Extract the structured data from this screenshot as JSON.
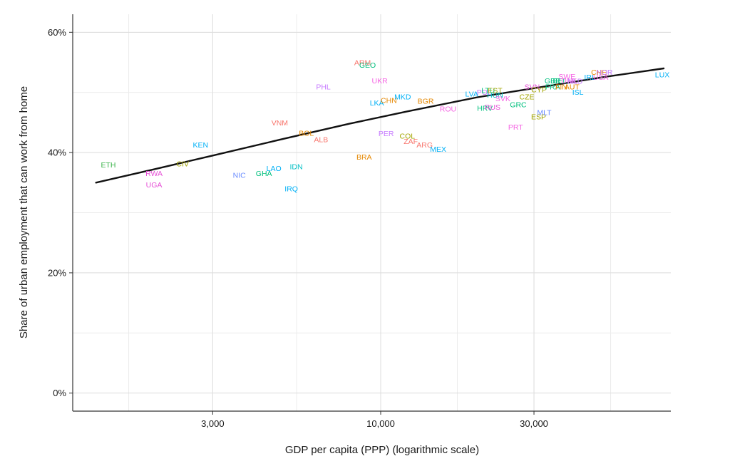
{
  "chart_data": {
    "type": "scatter",
    "title": "",
    "xlabel": "GDP per capita (PPP) (logarithmic scale)",
    "ylabel": "Share of urban employment that can work from home",
    "x_scale": "log",
    "xlim": [
      1100,
      80000
    ],
    "ylim": [
      -3,
      63
    ],
    "x_ticks": [
      {
        "value": 3000,
        "label": "3,000"
      },
      {
        "value": 10000,
        "label": "10,000"
      },
      {
        "value": 30000,
        "label": "30,000"
      }
    ],
    "y_ticks": [
      {
        "value": 0,
        "label": "0%"
      },
      {
        "value": 20,
        "label": "20%"
      },
      {
        "value": 40,
        "label": "40%"
      },
      {
        "value": 60,
        "label": "60%"
      }
    ],
    "grid": true,
    "legend": "none",
    "trend_line": {
      "x": [
        1300,
        2000,
        3000,
        5000,
        8000,
        12000,
        20000,
        30000,
        50000,
        76000
      ],
      "y": [
        35.0,
        37.3,
        39.5,
        42.3,
        44.8,
        46.8,
        49.2,
        50.7,
        52.6,
        54.0
      ],
      "color": "#111111"
    },
    "points": [
      {
        "label": "ETH",
        "x": 1420,
        "y": 38.0,
        "color": "#3cb44b"
      },
      {
        "label": "RWA",
        "x": 1970,
        "y": 36.6,
        "color": "#e64fd6"
      },
      {
        "label": "UGA",
        "x": 1970,
        "y": 34.7,
        "color": "#e64fd6"
      },
      {
        "label": "CIV",
        "x": 2420,
        "y": 38.2,
        "color": "#a3a500"
      },
      {
        "label": "KEN",
        "x": 2750,
        "y": 41.3,
        "color": "#00b0f6"
      },
      {
        "label": "NIC",
        "x": 3630,
        "y": 36.3,
        "color": "#6a8cff"
      },
      {
        "label": "GHA",
        "x": 4330,
        "y": 36.6,
        "color": "#00bf7d"
      },
      {
        "label": "LAO",
        "x": 4650,
        "y": 37.4,
        "color": "#00b0f6"
      },
      {
        "label": "IRQ",
        "x": 5270,
        "y": 34.0,
        "color": "#00b0f6"
      },
      {
        "label": "IDN",
        "x": 5460,
        "y": 37.7,
        "color": "#00bfc4"
      },
      {
        "label": "VNM",
        "x": 4850,
        "y": 45.0,
        "color": "#f8766d"
      },
      {
        "label": "BOL",
        "x": 5870,
        "y": 43.3,
        "color": "#e58700"
      },
      {
        "label": "ALB",
        "x": 6520,
        "y": 42.2,
        "color": "#f8766d"
      },
      {
        "label": "PHL",
        "x": 6630,
        "y": 51.0,
        "color": "#c77cff"
      },
      {
        "label": "ARM",
        "x": 8780,
        "y": 55.0,
        "color": "#f8766d"
      },
      {
        "label": "GEO",
        "x": 9100,
        "y": 54.6,
        "color": "#00bf7d"
      },
      {
        "label": "UKR",
        "x": 9930,
        "y": 52.0,
        "color": "#f564e3"
      },
      {
        "label": "BRA",
        "x": 8880,
        "y": 39.3,
        "color": "#e58700"
      },
      {
        "label": "LKA",
        "x": 9730,
        "y": 48.3,
        "color": "#00b0f6"
      },
      {
        "label": "CHN",
        "x": 10600,
        "y": 48.7,
        "color": "#e58700"
      },
      {
        "label": "PER",
        "x": 10400,
        "y": 43.2,
        "color": "#c77cff"
      },
      {
        "label": "MKD",
        "x": 11700,
        "y": 49.3,
        "color": "#00b0f6"
      },
      {
        "label": "COL",
        "x": 12100,
        "y": 42.8,
        "color": "#a3a500"
      },
      {
        "label": "ZAF",
        "x": 12400,
        "y": 41.9,
        "color": "#f8766d"
      },
      {
        "label": "BGR",
        "x": 13800,
        "y": 48.6,
        "color": "#e58700"
      },
      {
        "label": "ARG",
        "x": 13700,
        "y": 41.3,
        "color": "#f8766d"
      },
      {
        "label": "MEX",
        "x": 15100,
        "y": 40.6,
        "color": "#00b0f6"
      },
      {
        "label": "ROU",
        "x": 16200,
        "y": 47.3,
        "color": "#f564e3"
      },
      {
        "label": "LVA",
        "x": 19200,
        "y": 49.8,
        "color": "#00b0f6"
      },
      {
        "label": "POL",
        "x": 21000,
        "y": 50.1,
        "color": "#c77cff"
      },
      {
        "label": "LTU",
        "x": 21600,
        "y": 50.4,
        "color": "#00bf7d"
      },
      {
        "label": "EST",
        "x": 22700,
        "y": 50.4,
        "color": "#a3a500"
      },
      {
        "label": "HUN",
        "x": 22700,
        "y": 49.6,
        "color": "#00bfc4"
      },
      {
        "label": "HRV",
        "x": 21100,
        "y": 47.4,
        "color": "#00bf7d"
      },
      {
        "label": "RUS",
        "x": 22300,
        "y": 47.6,
        "color": "#e64fd6"
      },
      {
        "label": "SVK",
        "x": 24000,
        "y": 49.0,
        "color": "#f564e3"
      },
      {
        "label": "GRC",
        "x": 26800,
        "y": 48.0,
        "color": "#00bf7d"
      },
      {
        "label": "PRT",
        "x": 26300,
        "y": 44.3,
        "color": "#f564e3"
      },
      {
        "label": "CZE",
        "x": 28500,
        "y": 49.3,
        "color": "#a3a500"
      },
      {
        "label": "SVN",
        "x": 29600,
        "y": 51.0,
        "color": "#e64fd6"
      },
      {
        "label": "CYP",
        "x": 31100,
        "y": 50.5,
        "color": "#a3a500"
      },
      {
        "label": "ESP",
        "x": 31000,
        "y": 46.0,
        "color": "#a3a500"
      },
      {
        "label": "MLT",
        "x": 32300,
        "y": 46.7,
        "color": "#6a8cff"
      },
      {
        "label": "GBR",
        "x": 34300,
        "y": 52.0,
        "color": "#00bf7d"
      },
      {
        "label": "FRA",
        "x": 34300,
        "y": 51.0,
        "color": "#00bf7d"
      },
      {
        "label": "BEL",
        "x": 36100,
        "y": 52.0,
        "color": "#00bf7d"
      },
      {
        "label": "FIN",
        "x": 36500,
        "y": 51.0,
        "color": "#e58700"
      },
      {
        "label": "SWE",
        "x": 38000,
        "y": 52.7,
        "color": "#f564e3"
      },
      {
        "label": "DNK",
        "x": 38600,
        "y": 52.0,
        "color": "#f564e3"
      },
      {
        "label": "AUT",
        "x": 39400,
        "y": 51.0,
        "color": "#e58700"
      },
      {
        "label": "NLD",
        "x": 40300,
        "y": 51.9,
        "color": "#c77cff"
      },
      {
        "label": "ISL",
        "x": 41100,
        "y": 50.1,
        "color": "#00b0f6"
      },
      {
        "label": "IRL",
        "x": 44800,
        "y": 52.6,
        "color": "#00b0f6"
      },
      {
        "label": "CHE",
        "x": 47800,
        "y": 53.4,
        "color": "#e58700"
      },
      {
        "label": "USA",
        "x": 48400,
        "y": 52.6,
        "color": "#f564e3"
      },
      {
        "label": "NOR",
        "x": 49700,
        "y": 53.4,
        "color": "#c77cff"
      },
      {
        "label": "LUX",
        "x": 80000,
        "y": 53.0,
        "color": "#00b0f6"
      }
    ]
  }
}
